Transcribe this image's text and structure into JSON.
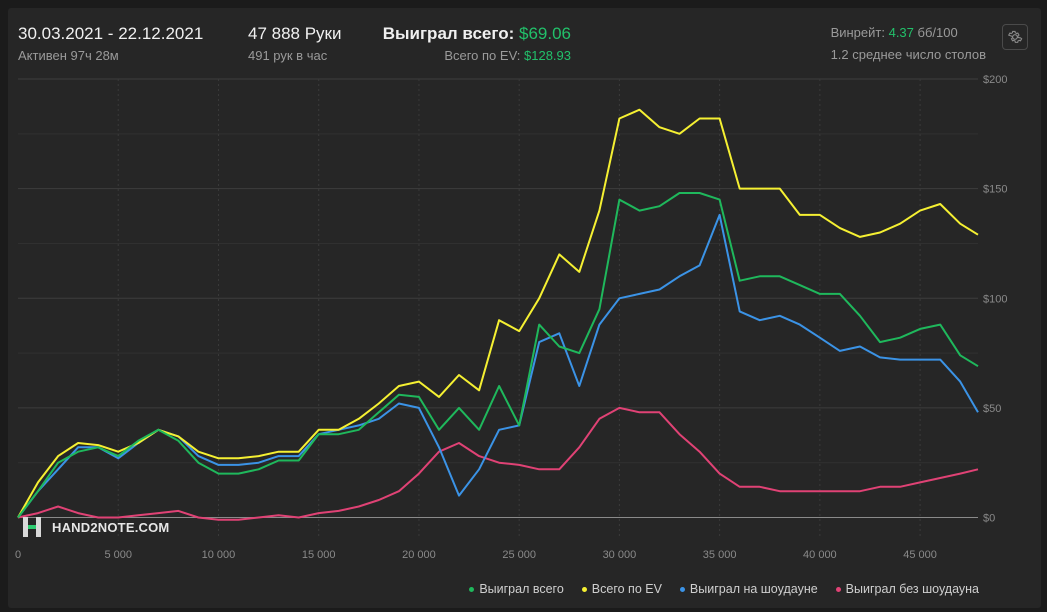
{
  "header": {
    "date_range": "30.03.2021 - 22.12.2021",
    "active_time": "Активен 97ч 28м",
    "hands": "47 888 Руки",
    "hands_per_hour": "491 рук в час",
    "won_total_label": "Выиграл всего:",
    "won_total_value": "$69.06",
    "ev_total_label": "Всего по EV:",
    "ev_total_value": "$128.93",
    "winrate_label": "Винрейт:",
    "winrate_value": "4.37",
    "winrate_unit": "бб/100",
    "avg_tables": "1.2 среднее число столов"
  },
  "logo": {
    "text": "HAND2NOTE.COM"
  },
  "icons": {
    "settings": "gear-icon",
    "logo": "hand2note-logo-icon"
  },
  "colors": {
    "won_total": "#1fb85c",
    "ev": "#f5f032",
    "showdown": "#3b93e6",
    "non_showdown": "#e04275",
    "accent_green": "#22c06a"
  },
  "chart_data": {
    "type": "line",
    "x_ticks": [
      "0",
      "5 000",
      "10 000",
      "15 000",
      "20 000",
      "25 000",
      "30 000",
      "35 000",
      "40 000",
      "45 000"
    ],
    "y_ticks": [
      "$200",
      "$150",
      "$100",
      "$50",
      "$0"
    ],
    "xlim": [
      0,
      47888
    ],
    "ylim": [
      -3,
      200
    ],
    "grid": true,
    "legend_position": "bottom-right",
    "x": [
      0,
      1000,
      2000,
      3000,
      4000,
      5000,
      6000,
      7000,
      8000,
      9000,
      10000,
      11000,
      12000,
      13000,
      14000,
      15000,
      16000,
      17000,
      18000,
      19000,
      20000,
      21000,
      22000,
      23000,
      24000,
      25000,
      26000,
      27000,
      28000,
      29000,
      30000,
      31000,
      32000,
      33000,
      34000,
      35000,
      36000,
      37000,
      38000,
      39000,
      40000,
      41000,
      42000,
      43000,
      44000,
      45000,
      46000,
      47000,
      47888
    ],
    "series": [
      {
        "name": "Выиграл всего",
        "color": "#1fb85c",
        "values": [
          0,
          12,
          25,
          30,
          32,
          28,
          35,
          40,
          35,
          25,
          20,
          20,
          22,
          26,
          26,
          38,
          38,
          40,
          48,
          56,
          55,
          40,
          50,
          40,
          60,
          42,
          88,
          78,
          75,
          95,
          145,
          140,
          142,
          148,
          148,
          145,
          108,
          110,
          110,
          106,
          102,
          102,
          92,
          80,
          82,
          86,
          88,
          74,
          69
        ]
      },
      {
        "name": "Всего по EV",
        "color": "#f5f032",
        "values": [
          0,
          16,
          28,
          34,
          33,
          30,
          34,
          40,
          37,
          30,
          27,
          27,
          28,
          30,
          30,
          40,
          40,
          45,
          52,
          60,
          62,
          55,
          65,
          58,
          90,
          85,
          100,
          120,
          112,
          140,
          182,
          186,
          178,
          175,
          182,
          182,
          150,
          150,
          150,
          138,
          138,
          132,
          128,
          130,
          134,
          140,
          143,
          134,
          129
        ]
      },
      {
        "name": "Выиграл на шоудауне",
        "color": "#3b93e6",
        "values": [
          0,
          12,
          22,
          32,
          32,
          27,
          34,
          40,
          37,
          28,
          24,
          24,
          25,
          28,
          28,
          38,
          40,
          42,
          45,
          52,
          50,
          32,
          10,
          22,
          40,
          42,
          80,
          84,
          60,
          88,
          100,
          102,
          104,
          110,
          115,
          138,
          94,
          90,
          92,
          88,
          82,
          76,
          78,
          73,
          72,
          72,
          72,
          62,
          48
        ]
      },
      {
        "name": "Выиграл без шоудауна",
        "color": "#e04275",
        "values": [
          0,
          2,
          5,
          2,
          0,
          0,
          1,
          2,
          3,
          0,
          -1,
          -1,
          0,
          1,
          0,
          2,
          3,
          5,
          8,
          12,
          20,
          30,
          34,
          28,
          25,
          24,
          22,
          22,
          32,
          45,
          50,
          48,
          48,
          38,
          30,
          20,
          14,
          14,
          12,
          12,
          12,
          12,
          12,
          14,
          14,
          16,
          18,
          20,
          22
        ]
      }
    ]
  }
}
